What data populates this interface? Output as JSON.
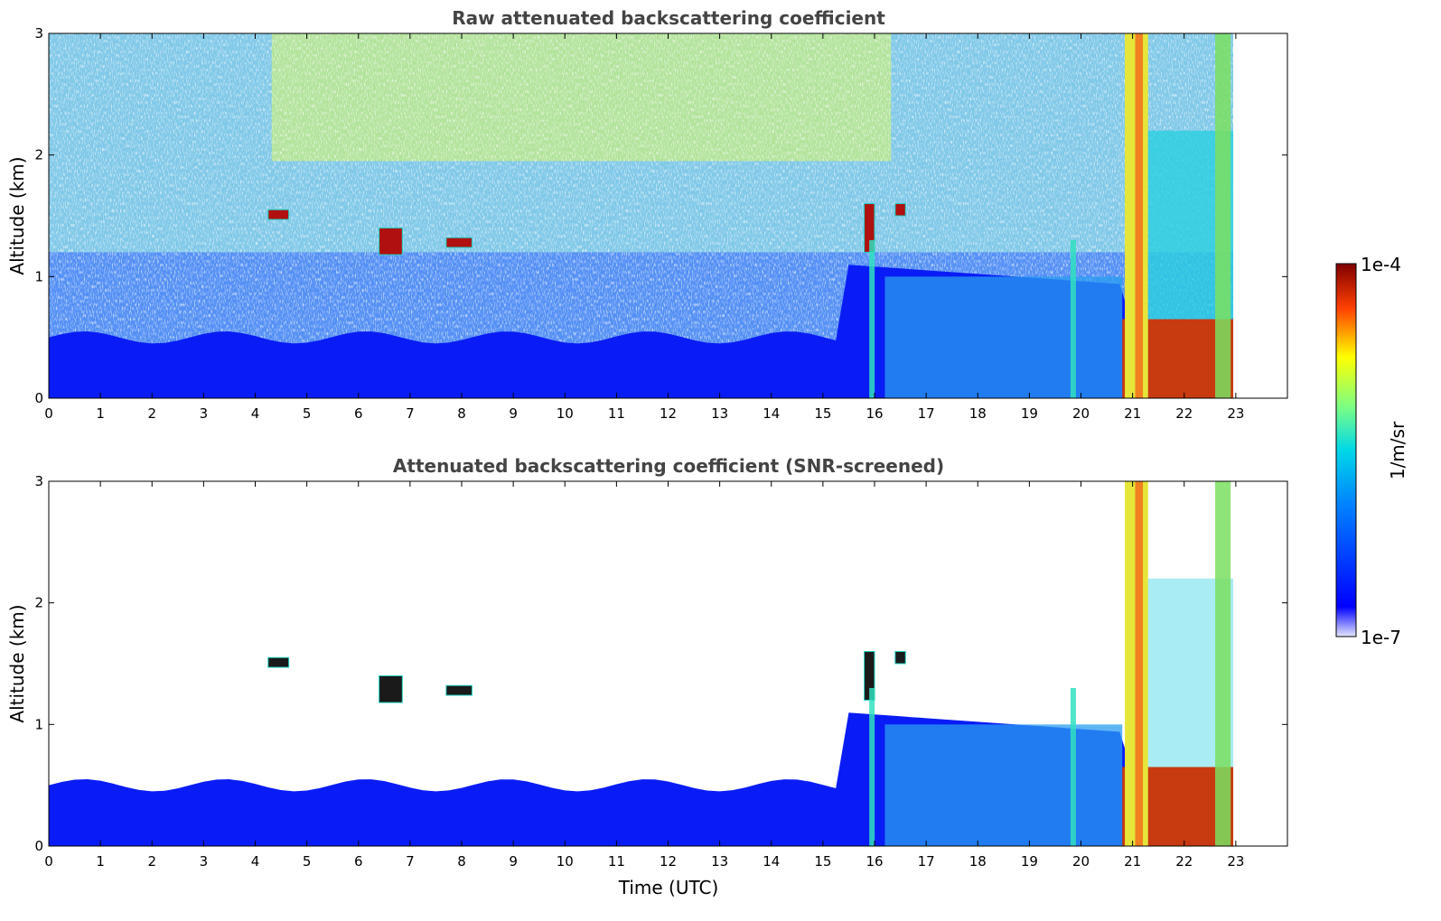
{
  "chart_data": [
    {
      "type": "heatmap",
      "title": "Raw attenuated backscattering coefficient",
      "xlabel": "",
      "ylabel": "Altitude (km)",
      "xlim": [
        0,
        24
      ],
      "ylim": [
        0,
        3
      ],
      "xticks": [
        "0",
        "1",
        "2",
        "3",
        "4",
        "5",
        "6",
        "7",
        "8",
        "9",
        "10",
        "11",
        "12",
        "13",
        "14",
        "15",
        "16",
        "17",
        "18",
        "19",
        "20",
        "21",
        "22",
        "23"
      ],
      "yticks": [
        "0",
        "1",
        "2",
        "3"
      ],
      "data_end_hour": 22.95,
      "screened": false,
      "features": [
        {
          "kind": "boundary-layer",
          "x": [
            0,
            22.95
          ],
          "top_km": 0.5
        },
        {
          "kind": "cloud",
          "x": [
            4.25,
            4.65
          ],
          "y": [
            1.47,
            1.55
          ]
        },
        {
          "kind": "cloud",
          "x": [
            6.4,
            6.85
          ],
          "y": [
            1.18,
            1.4
          ]
        },
        {
          "kind": "cloud",
          "x": [
            7.7,
            8.2
          ],
          "y": [
            1.24,
            1.32
          ]
        },
        {
          "kind": "cloud",
          "x": [
            15.8,
            16.0
          ],
          "y": [
            1.2,
            1.6
          ]
        },
        {
          "kind": "cloud",
          "x": [
            16.4,
            16.6
          ],
          "y": [
            1.5,
            1.6
          ]
        },
        {
          "kind": "precipitation",
          "x": [
            20.8,
            22.95
          ],
          "y": [
            0,
            3
          ]
        }
      ],
      "grid": false
    },
    {
      "type": "heatmap",
      "title": "Attenuated backscattering coefficient (SNR-screened)",
      "xlabel": "Time (UTC)",
      "ylabel": "Altitude (km)",
      "xlim": [
        0,
        24
      ],
      "ylim": [
        0,
        3
      ],
      "xticks": [
        "0",
        "1",
        "2",
        "3",
        "4",
        "5",
        "6",
        "7",
        "8",
        "9",
        "10",
        "11",
        "12",
        "13",
        "14",
        "15",
        "16",
        "17",
        "18",
        "19",
        "20",
        "21",
        "22",
        "23"
      ],
      "yticks": [
        "0",
        "1",
        "2",
        "3"
      ],
      "data_end_hour": 22.95,
      "screened": true,
      "features": [
        {
          "kind": "boundary-layer",
          "x": [
            0,
            22.95
          ],
          "top_km": 0.5
        },
        {
          "kind": "cloud",
          "x": [
            4.25,
            4.65
          ],
          "y": [
            1.47,
            1.55
          ]
        },
        {
          "kind": "cloud",
          "x": [
            6.4,
            6.85
          ],
          "y": [
            1.18,
            1.4
          ]
        },
        {
          "kind": "cloud",
          "x": [
            7.7,
            8.2
          ],
          "y": [
            1.24,
            1.32
          ]
        },
        {
          "kind": "cloud",
          "x": [
            15.8,
            16.0
          ],
          "y": [
            1.2,
            1.6
          ]
        },
        {
          "kind": "cloud",
          "x": [
            16.4,
            16.6
          ],
          "y": [
            1.5,
            1.6
          ]
        },
        {
          "kind": "precipitation",
          "x": [
            20.8,
            22.95
          ],
          "y": [
            0,
            3
          ]
        }
      ],
      "grid": false
    }
  ],
  "colorbar": {
    "label": "1/m/sr",
    "max_label": "1e-4",
    "min_label": "1e-7",
    "colormap": "jet"
  },
  "colors": {
    "title": "#444444",
    "low": "#0000ff",
    "high": "#8b0000"
  }
}
